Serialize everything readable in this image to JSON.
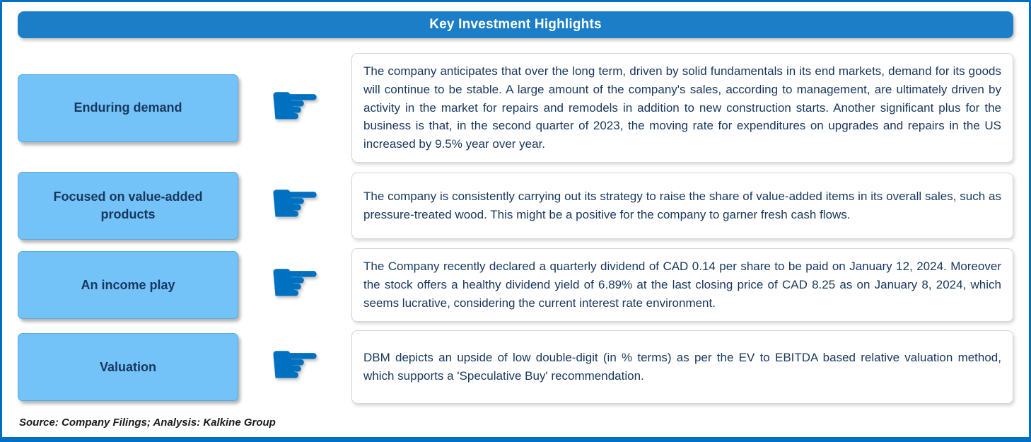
{
  "page": {
    "title": "Key Investment Highlights",
    "source_note": "Source: Company Filings; Analysis: Kalkine Group"
  },
  "colors": {
    "outer_border": "#0070C0",
    "title_bar": "#1B7EC6",
    "title_text": "#FFFFFF",
    "label_box_fill": "#74C3F8",
    "label_box_border": "#59A8E0",
    "label_text": "#17375E",
    "hand_icon": "#0070C0",
    "body_text": "#17375E",
    "text_box_border": "#D6D6D6"
  },
  "icons": {
    "pointing_hand": "☛"
  },
  "rows": [
    {
      "label": "Enduring demand",
      "text": "The company anticipates that over the long term, driven by solid fundamentals in its end markets, demand for its goods will continue to be stable. A large amount of the company's sales, according to management, are ultimately driven by activity in the market for repairs and remodels in addition to new construction starts. Another significant plus for the business is that, in the second quarter of 2023, the moving rate for expenditures on upgrades and repairs in the US increased by 9.5% year over year."
    },
    {
      "label": "Focused on value-added products",
      "text": "The company is consistently carrying out its strategy to raise the share of value-added items in its overall sales, such as pressure-treated wood.  This might be a positive for the company to garner fresh cash flows."
    },
    {
      "label": "An income play",
      "text": "The Company recently declared a quarterly dividend of CAD 0.14 per share to be paid on January 12, 2024. Moreover the stock offers a healthy dividend yield of 6.89% at the last closing price of CAD 8.25 as on January 8, 2024, which seems lucrative, considering the current interest rate environment."
    },
    {
      "label": "Valuation",
      "text": "DBM depicts an upside of low double-digit (in % terms) as per the EV to EBITDA based relative valuation method, which supports a 'Speculative Buy' recommendation."
    }
  ]
}
